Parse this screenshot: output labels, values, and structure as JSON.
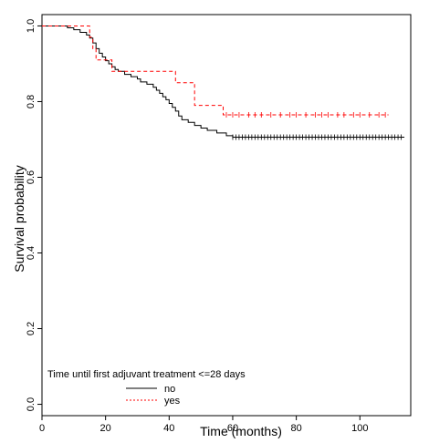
{
  "chart_data": {
    "type": "line",
    "title": "",
    "xlabel": "Time (months)",
    "ylabel": "Survival probability",
    "xlim": [
      0,
      116
    ],
    "ylim": [
      -0.03,
      1.03
    ],
    "x_ticks": [
      0,
      20,
      40,
      60,
      80,
      100
    ],
    "x_tick_labels": [
      "0",
      "20",
      "40",
      "60",
      "80",
      "100"
    ],
    "y_ticks": [
      0.0,
      0.2,
      0.4,
      0.6,
      0.8,
      1.0
    ],
    "y_tick_labels": [
      "0.0",
      "0.2",
      "0.4",
      "0.6",
      "0.8",
      "1.0"
    ],
    "grid": false,
    "legend": {
      "title": "Time until first adjuvant treatment <=28 days",
      "placement": "bottom-left",
      "entries": [
        "no",
        "yes"
      ]
    },
    "series": [
      {
        "name": "no",
        "color": "#000000",
        "line_style": "solid",
        "step_points": [
          [
            0,
            1.0
          ],
          [
            8,
            0.995
          ],
          [
            10,
            0.99
          ],
          [
            12,
            0.983
          ],
          [
            14,
            0.976
          ],
          [
            15,
            0.968
          ],
          [
            16,
            0.955
          ],
          [
            17,
            0.94
          ],
          [
            18,
            0.928
          ],
          [
            19,
            0.918
          ],
          [
            20,
            0.908
          ],
          [
            21,
            0.9
          ],
          [
            22,
            0.892
          ],
          [
            23,
            0.885
          ],
          [
            24,
            0.88
          ],
          [
            26,
            0.872
          ],
          [
            28,
            0.866
          ],
          [
            30,
            0.86
          ],
          [
            31,
            0.852
          ],
          [
            33,
            0.846
          ],
          [
            35,
            0.838
          ],
          [
            36,
            0.83
          ],
          [
            37,
            0.822
          ],
          [
            38,
            0.813
          ],
          [
            39,
            0.805
          ],
          [
            40,
            0.795
          ],
          [
            41,
            0.785
          ],
          [
            42,
            0.775
          ],
          [
            43,
            0.762
          ],
          [
            44,
            0.752
          ],
          [
            46,
            0.745
          ],
          [
            48,
            0.737
          ],
          [
            50,
            0.73
          ],
          [
            52,
            0.724
          ],
          [
            55,
            0.717
          ],
          [
            58,
            0.71
          ],
          [
            60,
            0.706
          ],
          [
            114,
            0.706
          ]
        ],
        "censor_x": [
          60,
          61,
          62,
          63,
          64,
          65,
          66,
          67,
          68,
          69,
          70,
          71,
          72,
          73,
          74,
          75,
          76,
          77,
          78,
          79,
          80,
          81,
          82,
          83,
          84,
          85,
          86,
          87,
          88,
          89,
          90,
          91,
          92,
          93,
          94,
          95,
          96,
          97,
          98,
          99,
          100,
          101,
          102,
          103,
          104,
          105,
          106,
          107,
          108,
          109,
          110,
          111,
          112,
          113
        ]
      },
      {
        "name": "yes",
        "color": "#ff0000",
        "line_style": "dashed",
        "step_points": [
          [
            0,
            1.0
          ],
          [
            15,
            0.97
          ],
          [
            16,
            0.94
          ],
          [
            17,
            0.91
          ],
          [
            22,
            0.88
          ],
          [
            42,
            0.85
          ],
          [
            48,
            0.79
          ],
          [
            57,
            0.765
          ],
          [
            109,
            0.765
          ]
        ],
        "censor_x": [
          58,
          60,
          62,
          65,
          67,
          69,
          72,
          75,
          78,
          80,
          83,
          86,
          88,
          90,
          93,
          95,
          98,
          100,
          103,
          106,
          108
        ]
      }
    ]
  }
}
